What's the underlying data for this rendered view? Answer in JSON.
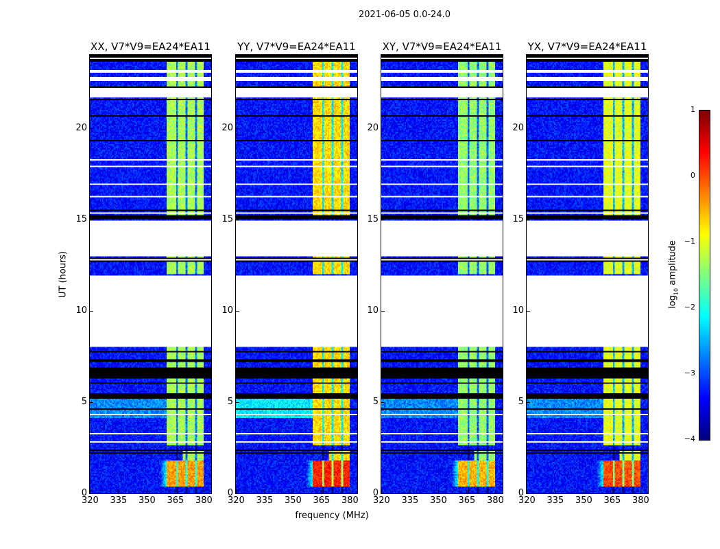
{
  "chart_data": {
    "type": "heatmap",
    "title": "2021-06-05 0.0-24.0",
    "xlabel": "frequency (MHz)",
    "ylabel": "UT (hours)",
    "xlim": [
      320,
      384
    ],
    "ylim": [
      0,
      24
    ],
    "xticks": [
      "320",
      "335",
      "350",
      "365",
      "380"
    ],
    "yticks": [
      "0",
      "5",
      "10",
      "15",
      "20"
    ],
    "panels": [
      {
        "title": "XX, V7*V9=EA24*EA11",
        "band_level": -1.3,
        "burst_level": -0.4
      },
      {
        "title": "YY, V7*V9=EA24*EA11",
        "band_level": -0.7,
        "burst_level": 0.2
      },
      {
        "title": "XY, V7*V9=EA24*EA11",
        "band_level": -1.4,
        "burst_level": -0.5
      },
      {
        "title": "YX, V7*V9=EA24*EA11",
        "band_level": -1.0,
        "burst_level": 0.0
      }
    ],
    "background_level": -3.3,
    "band_mhz": [
      360.5,
      380
    ],
    "notch_mhz": [
      366,
      371,
      376
    ],
    "no_data_hours": [
      [
        8.0,
        11.9
      ],
      [
        13.0,
        14.9
      ],
      [
        21.65,
        22.2
      ],
      [
        23.0,
        23.15
      ]
    ],
    "flagged_hours": [
      [
        5.2,
        5.5
      ],
      [
        6.3,
        6.9
      ],
      [
        7.2,
        7.35
      ],
      [
        12.7,
        12.9
      ],
      [
        15.0,
        15.2
      ],
      [
        23.6,
        24.0
      ]
    ],
    "colorbar": {
      "label": "log10 amplitude",
      "label_main": "log",
      "label_sub": "10",
      "label_rest": " amplitude",
      "range": [
        -4,
        1
      ],
      "ticks": [
        "1",
        "0",
        "−1",
        "−2",
        "−3",
        "−4"
      ]
    }
  }
}
